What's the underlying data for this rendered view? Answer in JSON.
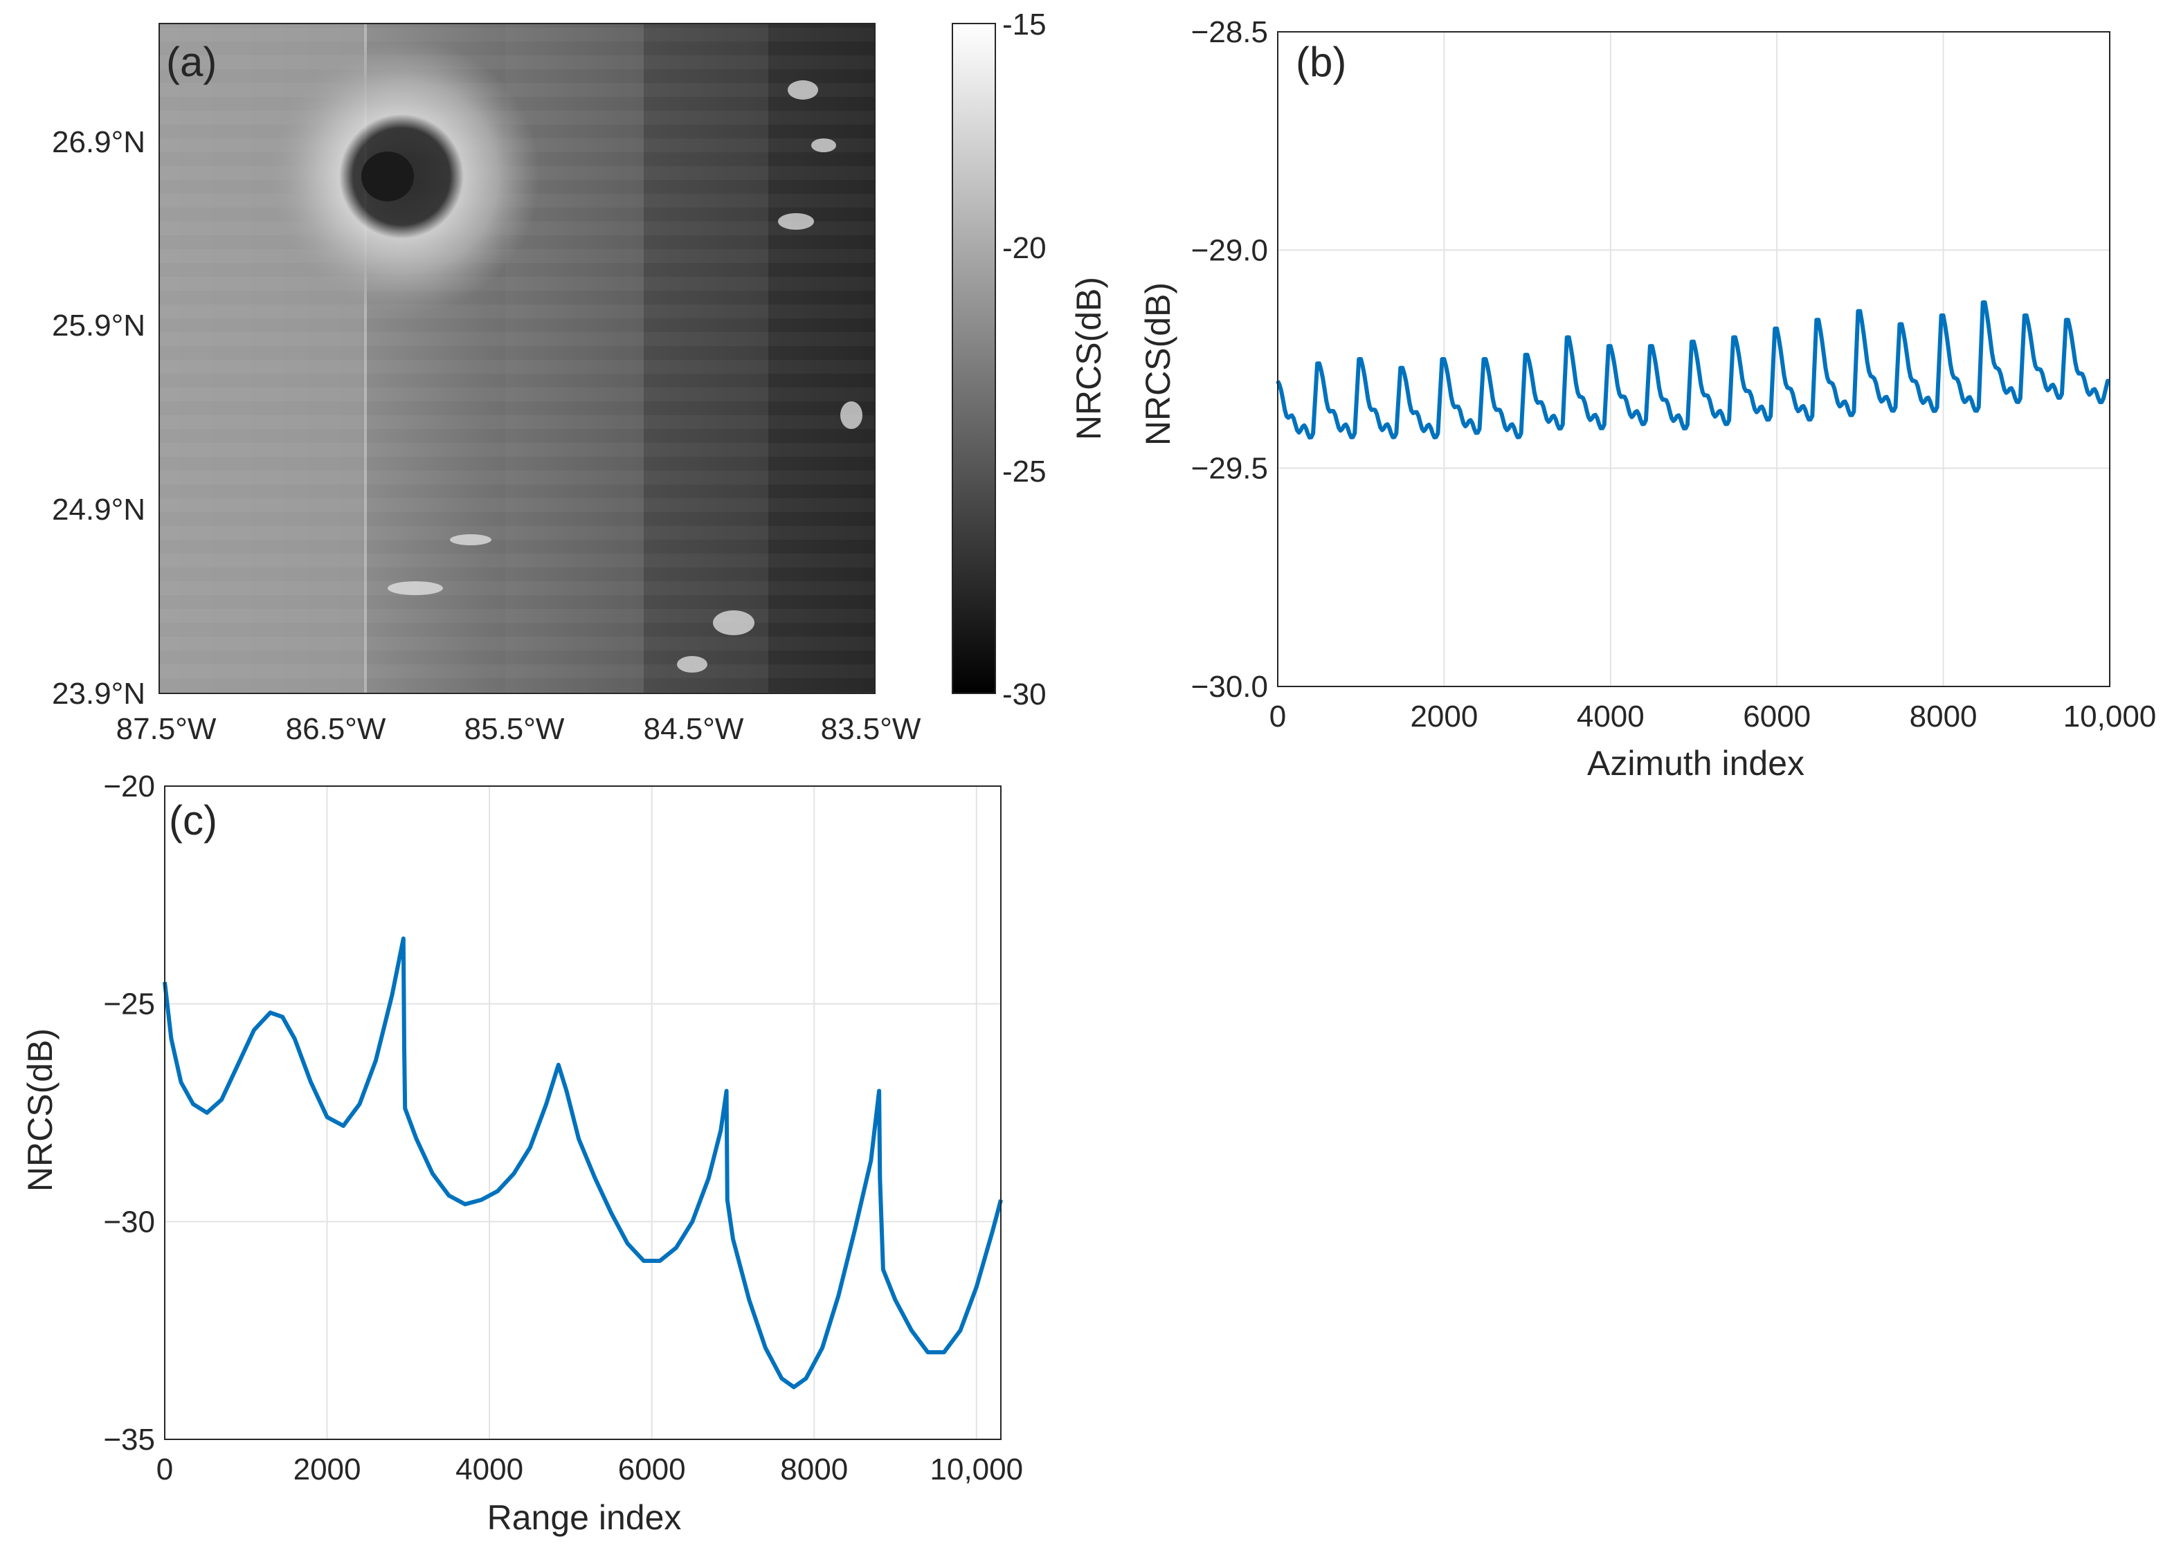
{
  "chart_data": [
    {
      "panel": "(a)",
      "type": "heatmap",
      "title": "",
      "description_of_field": "grayscale SAR image of normalized radar cross section",
      "xticks": [
        "87.5°W",
        "86.5°W",
        "85.5°W",
        "84.5°W",
        "83.5°W"
      ],
      "yticks": [
        "26.9°N",
        "25.9°N",
        "24.9°N",
        "23.9°N"
      ],
      "colorbar": {
        "label": "NRCS(dB)",
        "range": [
          -30,
          -15
        ],
        "ticks": [
          "-15",
          "-20",
          "-25",
          "-30"
        ],
        "colormap": "gray"
      }
    },
    {
      "panel": "(b)",
      "type": "line",
      "xlabel": "Azimuth index",
      "ylabel": "NRCS(dB)",
      "xlim": [
        0,
        10000
      ],
      "ylim": [
        -30.0,
        -28.5
      ],
      "xticks": [
        "0",
        "2000",
        "4000",
        "6000",
        "8000",
        "10,000"
      ],
      "yticks": [
        "−28.5",
        "−29.0",
        "−29.5",
        "−30.0"
      ],
      "grid": true,
      "series": [
        {
          "name": "NRCS azimuth profile",
          "color": "#0072BD",
          "period": 500,
          "cycles": [
            {
              "start": 0,
              "min": -29.42,
              "peak": -29.3
            },
            {
              "start": 500,
              "min": -29.42,
              "peak": -29.26
            },
            {
              "start": 1000,
              "min": -29.42,
              "peak": -29.25
            },
            {
              "start": 1500,
              "min": -29.42,
              "peak": -29.27
            },
            {
              "start": 2000,
              "min": -29.41,
              "peak": -29.25
            },
            {
              "start": 2500,
              "min": -29.42,
              "peak": -29.25
            },
            {
              "start": 3000,
              "min": -29.4,
              "peak": -29.24
            },
            {
              "start": 3500,
              "min": -29.4,
              "peak": -29.2
            },
            {
              "start": 4000,
              "min": -29.39,
              "peak": -29.22
            },
            {
              "start": 4500,
              "min": -29.4,
              "peak": -29.22
            },
            {
              "start": 5000,
              "min": -29.39,
              "peak": -29.21
            },
            {
              "start": 5500,
              "min": -29.38,
              "peak": -29.2
            },
            {
              "start": 6000,
              "min": -29.38,
              "peak": -29.18
            },
            {
              "start": 6500,
              "min": -29.37,
              "peak": -29.16
            },
            {
              "start": 7000,
              "min": -29.36,
              "peak": -29.14
            },
            {
              "start": 7500,
              "min": -29.36,
              "peak": -29.17
            },
            {
              "start": 8000,
              "min": -29.36,
              "peak": -29.15
            },
            {
              "start": 8500,
              "min": -29.34,
              "peak": -29.12
            },
            {
              "start": 9000,
              "min": -29.33,
              "peak": -29.15
            },
            {
              "start": 9500,
              "min": -29.34,
              "peak": -29.16
            },
            {
              "start": 10000,
              "min": -29.33,
              "peak": -29.3
            }
          ]
        }
      ]
    },
    {
      "panel": "(c)",
      "type": "line",
      "xlabel": "Range index",
      "ylabel": "NRCS(dB)",
      "xlim": [
        0,
        10300
      ],
      "ylim": [
        -35,
        -20
      ],
      "xticks": [
        "0",
        "2000",
        "4000",
        "6000",
        "8000",
        "10,000"
      ],
      "xtick_values": [
        0,
        2000,
        4000,
        6000,
        8000,
        10000
      ],
      "yticks": [
        "−20",
        "−25",
        "−30",
        "−35"
      ],
      "grid": true,
      "series": [
        {
          "name": "NRCS range profile",
          "color": "#0072BD",
          "x": [
            0,
            80,
            200,
            350,
            520,
            700,
            900,
            1100,
            1300,
            1450,
            1600,
            1800,
            2000,
            2200,
            2400,
            2600,
            2800,
            2940,
            2950,
            2960,
            3100,
            3300,
            3500,
            3700,
            3900,
            4100,
            4300,
            4500,
            4700,
            4850,
            4950,
            5100,
            5300,
            5500,
            5700,
            5900,
            6100,
            6300,
            6500,
            6700,
            6850,
            6920,
            6930,
            7000,
            7200,
            7400,
            7600,
            7750,
            7900,
            8100,
            8300,
            8500,
            8700,
            8800,
            8810,
            8850,
            9000,
            9200,
            9400,
            9600,
            9800,
            10000,
            10200,
            10300
          ],
          "y": [
            -24.5,
            -25.8,
            -26.8,
            -27.3,
            -27.5,
            -27.2,
            -26.4,
            -25.6,
            -25.2,
            -25.3,
            -25.8,
            -26.8,
            -27.6,
            -27.8,
            -27.3,
            -26.3,
            -24.8,
            -23.5,
            -26.0,
            -27.4,
            -28.1,
            -28.9,
            -29.4,
            -29.6,
            -29.5,
            -29.3,
            -28.9,
            -28.3,
            -27.3,
            -26.4,
            -27.0,
            -28.1,
            -29.0,
            -29.8,
            -30.5,
            -30.9,
            -30.9,
            -30.6,
            -30.0,
            -29.0,
            -27.9,
            -27.0,
            -29.5,
            -30.4,
            -31.8,
            -32.9,
            -33.6,
            -33.8,
            -33.6,
            -32.9,
            -31.7,
            -30.2,
            -28.6,
            -27.0,
            -29.0,
            -31.1,
            -31.8,
            -32.5,
            -33.0,
            -33.0,
            -32.5,
            -31.5,
            -30.2,
            -29.5
          ]
        }
      ]
    }
  ]
}
